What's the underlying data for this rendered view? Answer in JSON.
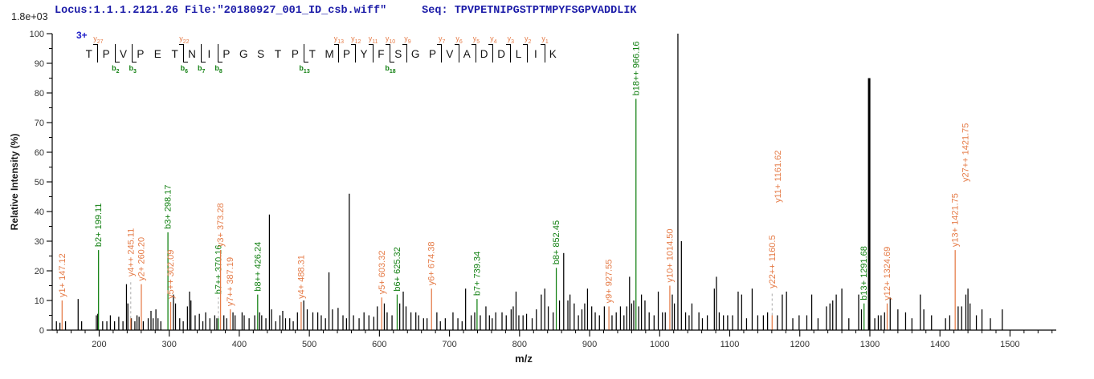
{
  "header": {
    "locus_file": "Locus:1.1.1.2121.26 File:\"20180927_001_ID_csb.wiff\"",
    "seq_label": "Seq:",
    "sequence": "TPVPETNIPGSTPTMPYFSGPVADDLIK",
    "charge": "3+"
  },
  "ladder": {
    "residues": [
      {
        "aa": "T"
      },
      {
        "aa": "P",
        "y": "27"
      },
      {
        "aa": "V",
        "b": "2"
      },
      {
        "aa": "P",
        "b": "3"
      },
      {
        "aa": "E"
      },
      {
        "aa": "T"
      },
      {
        "aa": "N",
        "y": "22",
        "b": "6"
      },
      {
        "aa": "I",
        "b": "7"
      },
      {
        "aa": "P",
        "b": "8"
      },
      {
        "aa": "G"
      },
      {
        "aa": "S"
      },
      {
        "aa": "T"
      },
      {
        "aa": "P"
      },
      {
        "aa": "T",
        "b": "13"
      },
      {
        "aa": "M"
      },
      {
        "aa": "P",
        "y": "13"
      },
      {
        "aa": "Y",
        "y": "12"
      },
      {
        "aa": "F",
        "y": "11"
      },
      {
        "aa": "S",
        "y": "10",
        "b": "18"
      },
      {
        "aa": "G",
        "y": "9"
      },
      {
        "aa": "P"
      },
      {
        "aa": "V",
        "y": "7"
      },
      {
        "aa": "A",
        "y": "6"
      },
      {
        "aa": "D",
        "y": "5"
      },
      {
        "aa": "D",
        "y": "4"
      },
      {
        "aa": "L",
        "y": "3"
      },
      {
        "aa": "I",
        "y": "2"
      },
      {
        "aa": "K",
        "y": "1"
      }
    ]
  },
  "chart_data": {
    "type": "bar",
    "title": "",
    "xlabel": "m/z",
    "ylabel": "Relative  Intensity (%)",
    "intensity_scale": "1.8e+03",
    "xlim": [
      133,
      1566
    ],
    "ylim": [
      0,
      100
    ],
    "x_major_ticks": [
      200,
      300,
      400,
      500,
      600,
      700,
      800,
      900,
      1000,
      1100,
      1200,
      1300,
      1400,
      1500
    ],
    "x_minor_step": 20,
    "y_major_tick_step": 10,
    "y_minor_tick_step": 5,
    "colors": {
      "b_ion": "#128012",
      "y_ion": "#E57B47",
      "peak": "#000000",
      "dashed": "#aaaaaa",
      "axis": "#000000",
      "tick_label": "#333333",
      "header_blue": "#1C1CA8",
      "charge_blue": "#2020C8"
    },
    "annotated_peaks": [
      {
        "ion": "y1+",
        "mz": 147.12,
        "label": "y1+ 147.12",
        "type": "y",
        "h": 10
      },
      {
        "ion": "b2+",
        "mz": 199.11,
        "label": "b2+ 199.11",
        "type": "b",
        "h": 27
      },
      {
        "ion": "y4++",
        "mz": 245.11,
        "label": "y4++ 245.11",
        "type": "y",
        "h": 17,
        "solid": 4
      },
      {
        "ion": "y2+",
        "mz": 260.2,
        "label": "y2+ 260.20",
        "type": "y",
        "h": 15.5
      },
      {
        "ion": "b3+",
        "mz": 298.17,
        "label": "b3+ 298.17",
        "type": "b",
        "h": 33
      },
      {
        "ion": "y5++",
        "mz": 302.09,
        "label": "y5++ 302.09",
        "type": "y",
        "h": 9.5
      },
      {
        "ion": "b7++",
        "mz": 370.16,
        "label": "b7++ 370.16",
        "type": "b",
        "h": 11,
        "solid": 4
      },
      {
        "ion": "y3+",
        "mz": 373.28,
        "label": "y3+ 373.28",
        "type": "y",
        "h": 27
      },
      {
        "ion": "y7++",
        "mz": 387.19,
        "label": "y7++ 387.19",
        "type": "y",
        "h": 7
      },
      {
        "ion": "b8++",
        "mz": 426.24,
        "label": "b8++ 426.24",
        "type": "b",
        "h": 12
      },
      {
        "ion": "y4+",
        "mz": 488.31,
        "label": "y4+ 488.31",
        "type": "y",
        "h": 9.5
      },
      {
        "ion": "y5+",
        "mz": 603.32,
        "label": "y5+ 603.32",
        "type": "y",
        "h": 11
      },
      {
        "ion": "b6+",
        "mz": 625.32,
        "label": "b6+ 625.32",
        "type": "b",
        "h": 12
      },
      {
        "ion": "y6+",
        "mz": 674.38,
        "label": "y6+ 674.38",
        "type": "y",
        "h": 14
      },
      {
        "ion": "b7+",
        "mz": 739.34,
        "label": "b7+ 739.34",
        "type": "b",
        "h": 10.5
      },
      {
        "ion": "b8+",
        "mz": 852.45,
        "label": "b8+ 852.45",
        "type": "b",
        "h": 21
      },
      {
        "ion": "y9+",
        "mz": 927.55,
        "label": "y9+ 927.55",
        "type": "y",
        "h": 8
      },
      {
        "ion": "b18++",
        "mz": 966.16,
        "label": "b18++ 966.16",
        "type": "b",
        "h": 78
      },
      {
        "ion": "y10+",
        "mz": 1014.5,
        "label": "y10+ 1014.50",
        "type": "y",
        "h": 15
      },
      {
        "ion": "y22++",
        "mz": 1160.5,
        "label": "y22++ 1160.5",
        "type": "y",
        "h": 13,
        "solid": 5
      },
      {
        "ion": "b13+",
        "mz": 1291.68,
        "label": "b13+ 1291.68",
        "type": "b",
        "h": 9
      },
      {
        "ion": "y12+",
        "mz": 1324.69,
        "label": "y12+ 1324.69",
        "type": "y",
        "h": 9
      },
      {
        "ion": "y13+",
        "mz": 1421.75,
        "label": "y13+ 1421.75",
        "type": "y",
        "h": 27
      }
    ],
    "floating_labels": [
      {
        "text": "y11+ 1161.62",
        "mz": 1161.62,
        "dx": 6,
        "bottom_pct": 43,
        "type": "y"
      },
      {
        "text": "y27++ 1421.75",
        "mz": 1421.75,
        "dx": 13,
        "bottom_pct": 50,
        "type": "y"
      }
    ],
    "unlabeled_peaks": [
      [
        139,
        3
      ],
      [
        144,
        2.5
      ],
      [
        152,
        3
      ],
      [
        170,
        10.5
      ],
      [
        175,
        3
      ],
      [
        196,
        5
      ],
      [
        198,
        5.5
      ],
      [
        205,
        3
      ],
      [
        211,
        3
      ],
      [
        216,
        5
      ],
      [
        222,
        3
      ],
      [
        228,
        4.5
      ],
      [
        234,
        3
      ],
      [
        239,
        15.5
      ],
      [
        241,
        9
      ],
      [
        246,
        4
      ],
      [
        251,
        3
      ],
      [
        254,
        5
      ],
      [
        257,
        4.5
      ],
      [
        263,
        3
      ],
      [
        270,
        4
      ],
      [
        274,
        6.5
      ],
      [
        277,
        4
      ],
      [
        281,
        7
      ],
      [
        284,
        4
      ],
      [
        288,
        3
      ],
      [
        306,
        12
      ],
      [
        309,
        9
      ],
      [
        315,
        4
      ],
      [
        320,
        3
      ],
      [
        326,
        8
      ],
      [
        329,
        13
      ],
      [
        331,
        10
      ],
      [
        337,
        5
      ],
      [
        343,
        5.5
      ],
      [
        348,
        3
      ],
      [
        352,
        6
      ],
      [
        358,
        4
      ],
      [
        365,
        5
      ],
      [
        368,
        4
      ],
      [
        378,
        5
      ],
      [
        382,
        4
      ],
      [
        391,
        6
      ],
      [
        394,
        5
      ],
      [
        404,
        6
      ],
      [
        407,
        5
      ],
      [
        414,
        4
      ],
      [
        422,
        5
      ],
      [
        429,
        6
      ],
      [
        432,
        5
      ],
      [
        438,
        4
      ],
      [
        443,
        39
      ],
      [
        446,
        7
      ],
      [
        452,
        3
      ],
      [
        458,
        5
      ],
      [
        462,
        6.5
      ],
      [
        466,
        4
      ],
      [
        472,
        4
      ],
      [
        477,
        3
      ],
      [
        483,
        6
      ],
      [
        492,
        10
      ],
      [
        497,
        7
      ],
      [
        505,
        6
      ],
      [
        512,
        6
      ],
      [
        517,
        5
      ],
      [
        523,
        4
      ],
      [
        528,
        19.5
      ],
      [
        533,
        7
      ],
      [
        541,
        7.5
      ],
      [
        548,
        5
      ],
      [
        553,
        4
      ],
      [
        557,
        46
      ],
      [
        563,
        5
      ],
      [
        571,
        4
      ],
      [
        578,
        6
      ],
      [
        585,
        5
      ],
      [
        592,
        4.5
      ],
      [
        597,
        8
      ],
      [
        607,
        9
      ],
      [
        611,
        6
      ],
      [
        618,
        5
      ],
      [
        629,
        9
      ],
      [
        634,
        13
      ],
      [
        638,
        8
      ],
      [
        645,
        6
      ],
      [
        652,
        6
      ],
      [
        656,
        5
      ],
      [
        663,
        4
      ],
      [
        668,
        4
      ],
      [
        682,
        6
      ],
      [
        687,
        3
      ],
      [
        694,
        4
      ],
      [
        705,
        6
      ],
      [
        712,
        4
      ],
      [
        718,
        3
      ],
      [
        723,
        14
      ],
      [
        731,
        5
      ],
      [
        736,
        6
      ],
      [
        744,
        5
      ],
      [
        752,
        8
      ],
      [
        757,
        5
      ],
      [
        761,
        4
      ],
      [
        766,
        6
      ],
      [
        775,
        6
      ],
      [
        781,
        5
      ],
      [
        788,
        7
      ],
      [
        791,
        8
      ],
      [
        795,
        13
      ],
      [
        799,
        5
      ],
      [
        805,
        5
      ],
      [
        810,
        5.5
      ],
      [
        818,
        4
      ],
      [
        824,
        7
      ],
      [
        831,
        12
      ],
      [
        836,
        14
      ],
      [
        841,
        8
      ],
      [
        848,
        6
      ],
      [
        857,
        10
      ],
      [
        863,
        26
      ],
      [
        869,
        10
      ],
      [
        872,
        12
      ],
      [
        878,
        9
      ],
      [
        884,
        5
      ],
      [
        889,
        7
      ],
      [
        893,
        9
      ],
      [
        897,
        14
      ],
      [
        903,
        8
      ],
      [
        908,
        6
      ],
      [
        914,
        5
      ],
      [
        921,
        8
      ],
      [
        932,
        5
      ],
      [
        938,
        6
      ],
      [
        944,
        8
      ],
      [
        949,
        5
      ],
      [
        953,
        8
      ],
      [
        957,
        18
      ],
      [
        960,
        9
      ],
      [
        963,
        10
      ],
      [
        970,
        8
      ],
      [
        974,
        12
      ],
      [
        979,
        10
      ],
      [
        985,
        6
      ],
      [
        992,
        5
      ],
      [
        998,
        13
      ],
      [
        1004,
        6
      ],
      [
        1008,
        6
      ],
      [
        1018,
        12
      ],
      [
        1021,
        9
      ],
      [
        1026,
        100
      ],
      [
        1031,
        30
      ],
      [
        1037,
        6
      ],
      [
        1042,
        5
      ],
      [
        1046,
        9
      ],
      [
        1056,
        6
      ],
      [
        1061,
        4
      ],
      [
        1068,
        5
      ],
      [
        1078,
        14
      ],
      [
        1081,
        18
      ],
      [
        1085,
        6
      ],
      [
        1091,
        5
      ],
      [
        1097,
        5
      ],
      [
        1104,
        5
      ],
      [
        1112,
        13
      ],
      [
        1117,
        12
      ],
      [
        1124,
        4
      ],
      [
        1132,
        14
      ],
      [
        1140,
        5
      ],
      [
        1148,
        5
      ],
      [
        1154,
        6
      ],
      [
        1168,
        5
      ],
      [
        1175,
        12
      ],
      [
        1181,
        13
      ],
      [
        1190,
        4
      ],
      [
        1199,
        5
      ],
      [
        1210,
        5
      ],
      [
        1217,
        12
      ],
      [
        1226,
        4
      ],
      [
        1238,
        8
      ],
      [
        1243,
        9
      ],
      [
        1247,
        10
      ],
      [
        1252,
        12
      ],
      [
        1260,
        14
      ],
      [
        1270,
        4
      ],
      [
        1284,
        12
      ],
      [
        1288,
        7
      ],
      [
        1299,
        85,
        3
      ],
      [
        1307,
        4
      ],
      [
        1312,
        5
      ],
      [
        1316,
        5
      ],
      [
        1321,
        6
      ],
      [
        1329,
        11
      ],
      [
        1340,
        7
      ],
      [
        1351,
        6
      ],
      [
        1360,
        4
      ],
      [
        1372,
        12
      ],
      [
        1377,
        7
      ],
      [
        1388,
        5
      ],
      [
        1408,
        4
      ],
      [
        1414,
        5
      ],
      [
        1426,
        8
      ],
      [
        1431,
        8
      ],
      [
        1437,
        12
      ],
      [
        1440,
        14
      ],
      [
        1443,
        9
      ],
      [
        1452,
        5
      ],
      [
        1460,
        7
      ],
      [
        1472,
        4
      ],
      [
        1489,
        7
      ]
    ]
  }
}
